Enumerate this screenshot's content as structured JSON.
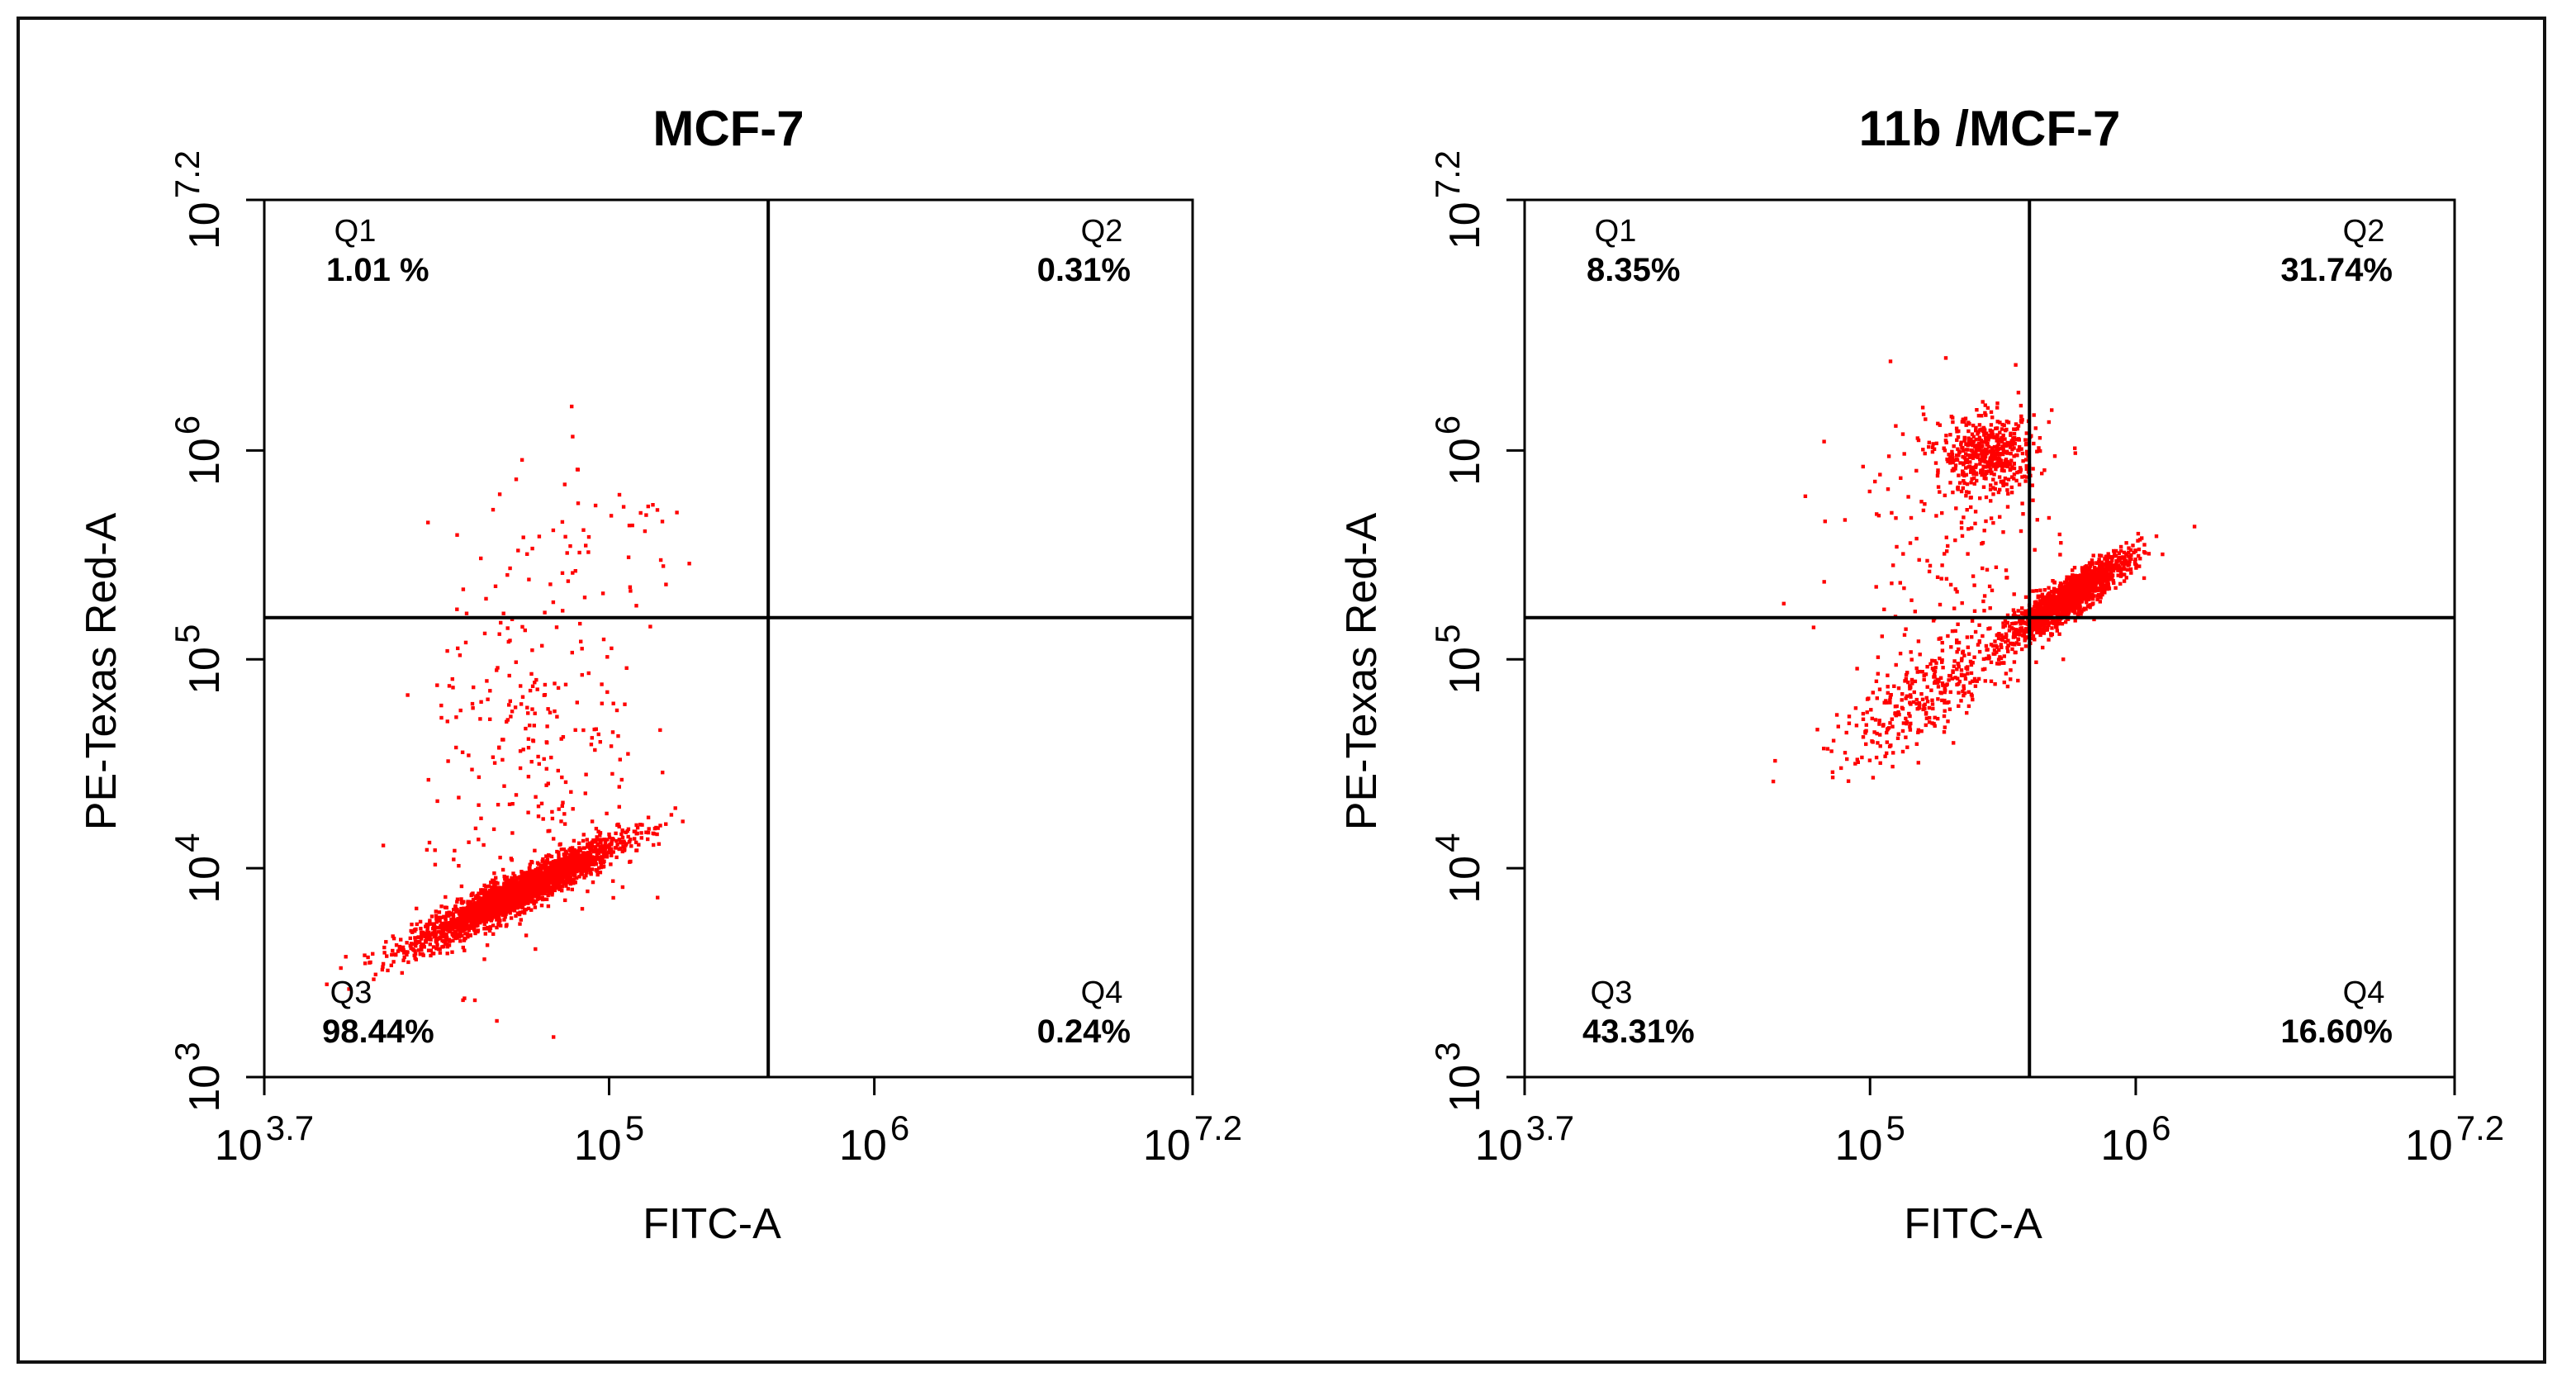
{
  "chart_data": [
    {
      "type": "scatter",
      "title": "MCF-7",
      "xlabel": "FITC-A",
      "ylabel": "PE-Texas Red-A",
      "x_scale": "log",
      "y_scale": "log",
      "xlim": [
        5011.9,
        15848932
      ],
      "ylim": [
        1000,
        15848932
      ],
      "x_ticks": [
        {
          "base": "10",
          "exp": "3.7",
          "value": 5011.9
        },
        {
          "base": "10",
          "exp": "5",
          "value": 100000
        },
        {
          "base": "10",
          "exp": "6",
          "value": 1000000
        },
        {
          "base": "10",
          "exp": "7.2",
          "value": 15848932
        }
      ],
      "y_ticks": [
        {
          "base": "10",
          "exp": "3",
          "value": 1000
        },
        {
          "base": "10",
          "exp": "4",
          "value": 10000
        },
        {
          "base": "10",
          "exp": "5",
          "value": 100000
        },
        {
          "base": "10",
          "exp": "6",
          "value": 1000000
        },
        {
          "base": "10",
          "exp": "7.2",
          "value": 15848932
        }
      ],
      "gate": {
        "x": 398107,
        "y": 158489
      },
      "quadrants": [
        {
          "id": "Q1",
          "name": "Q1",
          "percent": "1.01 %"
        },
        {
          "id": "Q2",
          "name": "Q2",
          "percent": "0.31%"
        },
        {
          "id": "Q3",
          "name": "Q3",
          "percent": "98.44%"
        },
        {
          "id": "Q4",
          "name": "Q4",
          "percent": "0.24%"
        }
      ],
      "point_color": "#ff0000",
      "populations": [
        {
          "count": 2600,
          "x_log_center": 4.65,
          "y_log_center": 3.88,
          "x_log_sd": 0.19,
          "y_log_sd": 0.045,
          "corr_slope": 0.62
        },
        {
          "count": 260,
          "x_log_center": 4.72,
          "y_log_center": 4.55,
          "x_log_sd": 0.2,
          "y_log_sd": 0.5,
          "corr_slope": 0.0
        },
        {
          "count": 45,
          "x_log_center": 4.95,
          "y_log_center": 5.55,
          "x_log_sd": 0.22,
          "y_log_sd": 0.2,
          "corr_slope": 0.0
        }
      ]
    },
    {
      "type": "scatter",
      "title": "11b /MCF-7",
      "xlabel": "FITC-A",
      "ylabel": "PE-Texas Red-A",
      "x_scale": "log",
      "y_scale": "log",
      "xlim": [
        5011.9,
        15848932
      ],
      "ylim": [
        1000,
        15848932
      ],
      "x_ticks": [
        {
          "base": "10",
          "exp": "3.7",
          "value": 5011.9
        },
        {
          "base": "10",
          "exp": "5",
          "value": 100000
        },
        {
          "base": "10",
          "exp": "6",
          "value": 1000000
        },
        {
          "base": "10",
          "exp": "7.2",
          "value": 15848932
        }
      ],
      "y_ticks": [
        {
          "base": "10",
          "exp": "3",
          "value": 1000
        },
        {
          "base": "10",
          "exp": "4",
          "value": 10000
        },
        {
          "base": "10",
          "exp": "5",
          "value": 100000
        },
        {
          "base": "10",
          "exp": "6",
          "value": 1000000
        },
        {
          "base": "10",
          "exp": "7.2",
          "value": 15848932
        }
      ],
      "gate": {
        "x": 398107,
        "y": 158489
      },
      "quadrants": [
        {
          "id": "Q1",
          "name": "Q1",
          "percent": "8.35%"
        },
        {
          "id": "Q2",
          "name": "Q2",
          "percent": "31.74%"
        },
        {
          "id": "Q3",
          "name": "Q3",
          "percent": "43.31%"
        },
        {
          "id": "Q4",
          "name": "Q4",
          "percent": "16.60%"
        }
      ],
      "point_color": "#ff0000",
      "populations": [
        {
          "count": 1500,
          "x_log_center": 5.75,
          "y_log_center": 5.3,
          "x_log_sd": 0.11,
          "y_log_sd": 0.045,
          "corr_slope": 0.8
        },
        {
          "count": 500,
          "x_log_center": 5.45,
          "y_log_center": 5.98,
          "x_log_sd": 0.09,
          "y_log_sd": 0.09,
          "corr_slope": 0.0
        },
        {
          "count": 350,
          "x_log_center": 5.25,
          "y_log_center": 4.85,
          "x_log_sd": 0.2,
          "y_log_sd": 0.1,
          "corr_slope": 0.75
        },
        {
          "count": 180,
          "x_log_center": 5.3,
          "y_log_center": 5.6,
          "x_log_sd": 0.2,
          "y_log_sd": 0.35,
          "corr_slope": 0.0
        }
      ]
    }
  ]
}
